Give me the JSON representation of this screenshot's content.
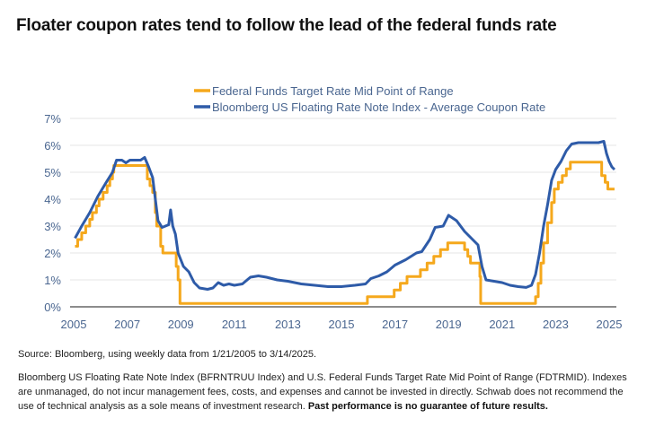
{
  "title": "Floater coupon rates tend to follow the lead of the federal funds rate",
  "source": "Source: Bloomberg, using weekly data from 1/21/2005 to 3/14/2025.",
  "note": "Bloomberg US Floating Rate Note Index (BFRNTRUU Index) and U.S. Federal Funds Target Rate Mid Point of Range (FDTRMID). Indexes are unmanaged, do not incur management fees, costs, and expenses and cannot be invested in directly. Schwab does not recommend the use of technical analysis as a sole means of investment research.",
  "note_bold": "Past performance is no guarantee of future results.",
  "chart_data": {
    "type": "line",
    "title": "",
    "xlabel": "",
    "ylabel": "",
    "xlim": [
      2005,
      2025.3
    ],
    "ylim": [
      0,
      7
    ],
    "x_ticks": [
      "2005",
      "2007",
      "2009",
      "2011",
      "2013",
      "2015",
      "2017",
      "2019",
      "2021",
      "2023",
      "2025"
    ],
    "y_ticks": [
      "0%",
      "1%",
      "2%",
      "3%",
      "4%",
      "5%",
      "6%",
      "7%"
    ],
    "grid": true,
    "legend": "top-center",
    "series": [
      {
        "name": "Federal Funds Target Rate Mid Point of Range",
        "color": "#F5A81C",
        "step": true,
        "points": [
          [
            2005.05,
            2.25
          ],
          [
            2005.15,
            2.5
          ],
          [
            2005.3,
            2.75
          ],
          [
            2005.45,
            3.0
          ],
          [
            2005.6,
            3.25
          ],
          [
            2005.7,
            3.5
          ],
          [
            2005.85,
            3.75
          ],
          [
            2005.95,
            4.0
          ],
          [
            2006.1,
            4.25
          ],
          [
            2006.25,
            4.5
          ],
          [
            2006.35,
            4.75
          ],
          [
            2006.45,
            5.0
          ],
          [
            2006.5,
            5.25
          ],
          [
            2007.7,
            5.25
          ],
          [
            2007.75,
            4.75
          ],
          [
            2007.85,
            4.5
          ],
          [
            2007.95,
            4.25
          ],
          [
            2008.05,
            3.5
          ],
          [
            2008.1,
            3.0
          ],
          [
            2008.25,
            2.25
          ],
          [
            2008.33,
            2.0
          ],
          [
            2008.8,
            2.0
          ],
          [
            2008.83,
            1.5
          ],
          [
            2008.9,
            1.0
          ],
          [
            2008.97,
            0.125
          ],
          [
            2015.95,
            0.125
          ],
          [
            2015.97,
            0.375
          ],
          [
            2016.95,
            0.375
          ],
          [
            2016.97,
            0.625
          ],
          [
            2017.2,
            0.875
          ],
          [
            2017.45,
            1.125
          ],
          [
            2017.95,
            1.375
          ],
          [
            2018.2,
            1.625
          ],
          [
            2018.45,
            1.875
          ],
          [
            2018.7,
            2.125
          ],
          [
            2018.97,
            2.375
          ],
          [
            2019.55,
            2.375
          ],
          [
            2019.6,
            2.125
          ],
          [
            2019.72,
            1.875
          ],
          [
            2019.82,
            1.625
          ],
          [
            2020.17,
            1.125
          ],
          [
            2020.2,
            0.125
          ],
          [
            2022.2,
            0.125
          ],
          [
            2022.25,
            0.375
          ],
          [
            2022.35,
            0.875
          ],
          [
            2022.45,
            1.625
          ],
          [
            2022.55,
            2.375
          ],
          [
            2022.7,
            3.125
          ],
          [
            2022.85,
            3.875
          ],
          [
            2022.95,
            4.375
          ],
          [
            2023.1,
            4.625
          ],
          [
            2023.25,
            4.875
          ],
          [
            2023.4,
            5.125
          ],
          [
            2023.55,
            5.375
          ],
          [
            2024.7,
            5.375
          ],
          [
            2024.72,
            4.875
          ],
          [
            2024.85,
            4.625
          ],
          [
            2024.95,
            4.375
          ],
          [
            2025.2,
            4.375
          ]
        ]
      },
      {
        "name": "Bloomberg US Floating Rate Note Index - Average Coupon Rate",
        "color": "#2E5BA8",
        "step": false,
        "points": [
          [
            2005.05,
            2.55
          ],
          [
            2005.3,
            3.0
          ],
          [
            2005.6,
            3.5
          ],
          [
            2005.9,
            4.1
          ],
          [
            2006.2,
            4.6
          ],
          [
            2006.45,
            5.0
          ],
          [
            2006.6,
            5.45
          ],
          [
            2006.8,
            5.45
          ],
          [
            2006.95,
            5.35
          ],
          [
            2007.1,
            5.45
          ],
          [
            2007.3,
            5.45
          ],
          [
            2007.5,
            5.45
          ],
          [
            2007.65,
            5.55
          ],
          [
            2007.8,
            5.2
          ],
          [
            2007.95,
            4.8
          ],
          [
            2008.05,
            4.0
          ],
          [
            2008.15,
            3.2
          ],
          [
            2008.3,
            2.95
          ],
          [
            2008.55,
            3.05
          ],
          [
            2008.62,
            3.6
          ],
          [
            2008.7,
            3.0
          ],
          [
            2008.8,
            2.7
          ],
          [
            2008.9,
            2.0
          ],
          [
            2009.1,
            1.5
          ],
          [
            2009.3,
            1.3
          ],
          [
            2009.5,
            0.9
          ],
          [
            2009.7,
            0.7
          ],
          [
            2010.0,
            0.65
          ],
          [
            2010.2,
            0.7
          ],
          [
            2010.4,
            0.9
          ],
          [
            2010.6,
            0.8
          ],
          [
            2010.8,
            0.85
          ],
          [
            2011.0,
            0.8
          ],
          [
            2011.3,
            0.85
          ],
          [
            2011.6,
            1.1
          ],
          [
            2011.9,
            1.15
          ],
          [
            2012.2,
            1.1
          ],
          [
            2012.6,
            1.0
          ],
          [
            2013.0,
            0.95
          ],
          [
            2013.5,
            0.85
          ],
          [
            2014.0,
            0.8
          ],
          [
            2014.5,
            0.75
          ],
          [
            2015.0,
            0.75
          ],
          [
            2015.5,
            0.8
          ],
          [
            2015.9,
            0.85
          ],
          [
            2016.1,
            1.05
          ],
          [
            2016.4,
            1.15
          ],
          [
            2016.7,
            1.3
          ],
          [
            2017.0,
            1.55
          ],
          [
            2017.4,
            1.75
          ],
          [
            2017.8,
            2.0
          ],
          [
            2018.0,
            2.05
          ],
          [
            2018.3,
            2.5
          ],
          [
            2018.5,
            2.95
          ],
          [
            2018.8,
            3.0
          ],
          [
            2019.0,
            3.4
          ],
          [
            2019.3,
            3.2
          ],
          [
            2019.6,
            2.8
          ],
          [
            2019.9,
            2.5
          ],
          [
            2020.1,
            2.3
          ],
          [
            2020.25,
            1.5
          ],
          [
            2020.4,
            1.0
          ],
          [
            2020.7,
            0.95
          ],
          [
            2021.0,
            0.9
          ],
          [
            2021.3,
            0.8
          ],
          [
            2021.6,
            0.75
          ],
          [
            2021.9,
            0.72
          ],
          [
            2022.1,
            0.8
          ],
          [
            2022.25,
            1.2
          ],
          [
            2022.4,
            2.0
          ],
          [
            2022.55,
            3.0
          ],
          [
            2022.7,
            3.8
          ],
          [
            2022.85,
            4.7
          ],
          [
            2023.0,
            5.1
          ],
          [
            2023.2,
            5.4
          ],
          [
            2023.4,
            5.8
          ],
          [
            2023.6,
            6.05
          ],
          [
            2023.85,
            6.1
          ],
          [
            2024.2,
            6.1
          ],
          [
            2024.6,
            6.1
          ],
          [
            2024.8,
            6.15
          ],
          [
            2024.9,
            5.7
          ],
          [
            2025.0,
            5.4
          ],
          [
            2025.1,
            5.2
          ],
          [
            2025.2,
            5.1
          ]
        ]
      }
    ]
  }
}
